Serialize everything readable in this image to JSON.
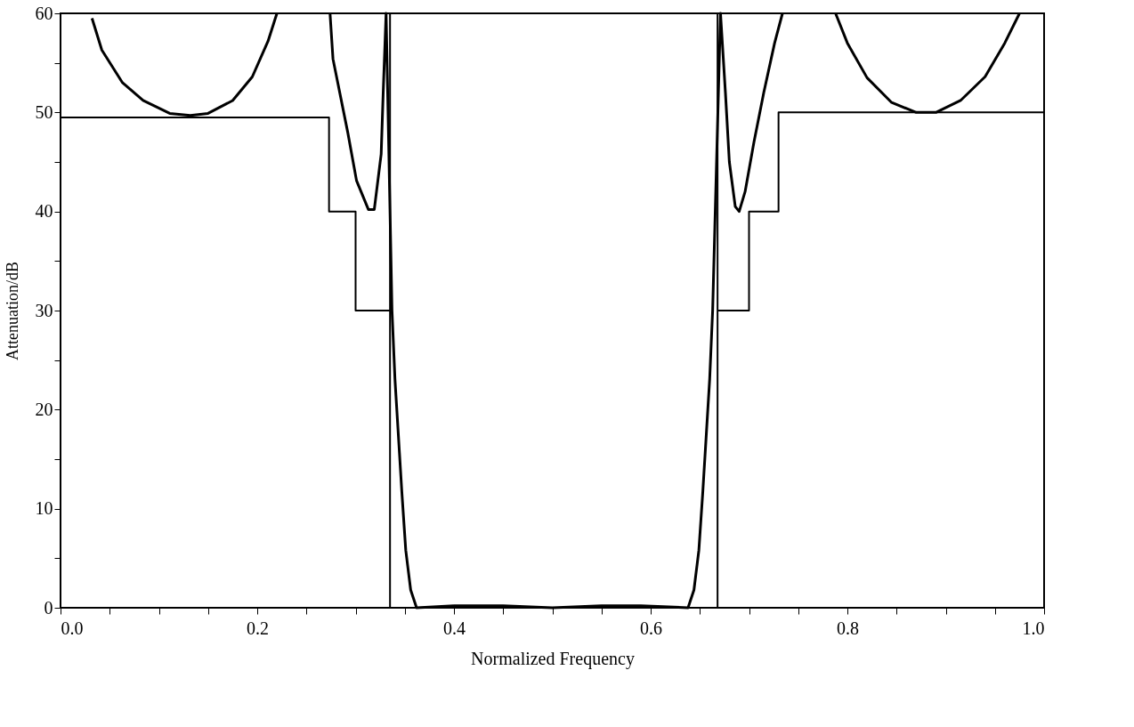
{
  "chart_data": {
    "type": "line",
    "xlabel": "Normalized Frequency",
    "ylabel": "Attenuation/dB",
    "xlim": [
      0,
      1
    ],
    "ylim": [
      0,
      60
    ],
    "xticks": [
      {
        "value": 0,
        "label": "0.0"
      },
      {
        "value": 0.05,
        "label": null
      },
      {
        "value": 0.1,
        "label": null
      },
      {
        "value": 0.15,
        "label": null
      },
      0.2,
      {
        "value": 0.25,
        "label": null
      },
      {
        "value": 0.3,
        "label": null
      },
      {
        "value": 0.35,
        "label": null
      },
      0.4,
      {
        "value": 0.45,
        "label": null
      },
      {
        "value": 0.5,
        "label": null
      },
      {
        "value": 0.55,
        "label": null
      },
      0.6,
      {
        "value": 0.65,
        "label": null
      },
      {
        "value": 0.7,
        "label": null
      },
      {
        "value": 0.75,
        "label": null
      },
      0.8,
      {
        "value": 0.85,
        "label": null
      },
      {
        "value": 0.9,
        "label": null
      },
      {
        "value": 0.95,
        "label": null
      },
      {
        "value": 1,
        "label": "1.0"
      }
    ],
    "yticks": [
      0,
      {
        "value": 5,
        "label": null
      },
      10,
      {
        "value": 15,
        "label": null
      },
      20,
      {
        "value": 25,
        "label": null
      },
      30,
      {
        "value": 35,
        "label": null
      },
      40,
      {
        "value": 45,
        "label": null
      },
      50,
      {
        "value": 55,
        "label": null
      },
      60
    ],
    "grid": false,
    "marker": "none",
    "line_style": "solid",
    "series": [
      {
        "color": "#000000",
        "x": [
          0,
          0.273,
          0.273,
          0.3,
          0.3,
          0.335,
          0.5,
          0.668,
          0.7,
          0.7,
          0.73,
          0.73,
          1.0
        ],
        "values": [
          49.5,
          49.5,
          40,
          40,
          30,
          30,
          null,
          30,
          30,
          40,
          40,
          50,
          50
        ]
      },
      {
        "color": "#000000",
        "x": [
          0.032,
          0.042,
          0.063,
          0.084,
          0.111,
          0.132,
          0.15,
          0.175,
          0.195,
          0.211,
          0.22,
          0.25,
          0.274,
          0.277,
          0.292,
          0.301,
          0.313,
          0.319,
          0.326,
          0.328,
          0.331,
          0.337,
          0.34,
          0.347,
          0.351,
          0.356,
          0.362,
          0.4,
          0.45,
          0.5,
          0.55,
          0.59,
          0.638,
          0.644,
          0.649,
          0.653,
          0.66,
          0.663,
          0.671,
          0.676,
          0.68,
          0.686,
          0.69,
          0.696,
          0.705,
          0.715,
          0.726,
          0.734,
          0.76,
          0.788,
          0.8,
          0.82,
          0.845,
          0.87,
          0.89,
          0.915,
          0.94,
          0.96,
          0.975
        ],
        "values": [
          59.5,
          56.3,
          53.0,
          51.2,
          49.9,
          49.7,
          49.9,
          51.2,
          53.6,
          57.2,
          60,
          null,
          60,
          55.4,
          48.0,
          43.1,
          40.2,
          40.2,
          45.8,
          51.8,
          60,
          30.0,
          23.1,
          11.7,
          5.8,
          1.8,
          0,
          0.2,
          0.2,
          0,
          0.2,
          0.2,
          0,
          1.8,
          5.8,
          11.7,
          23.1,
          30,
          60,
          52,
          45,
          40.5,
          40.0,
          42,
          47,
          52,
          57,
          60,
          null,
          60,
          57,
          53.5,
          51,
          50.0,
          50.0,
          51.2,
          53.6,
          57,
          60
        ]
      }
    ],
    "ref_lines": [
      {
        "axis": "x",
        "value": 0.335,
        "color": "#000000"
      },
      {
        "axis": "x",
        "value": 0.668,
        "color": "#000000"
      }
    ]
  }
}
